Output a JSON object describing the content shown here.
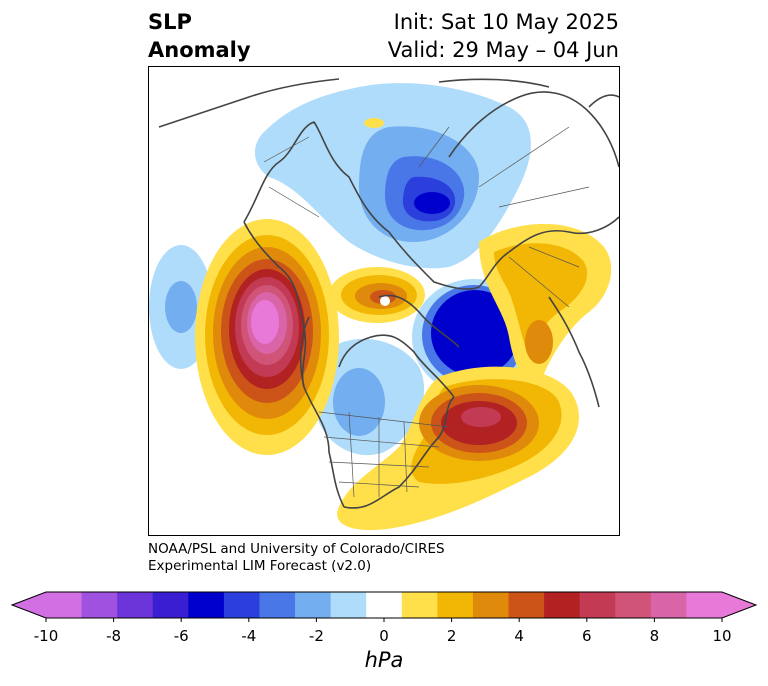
{
  "title": {
    "left_line1": "SLP",
    "left_line2": "Anomaly",
    "init": "Init: Sat 10 May 2025",
    "valid": "Valid: 29 May – 04 Jun"
  },
  "credit": {
    "line1": "NOAA/PSL and University of Colorado/CIRES",
    "line2": "Experimental LIM Forecast (v2.0)"
  },
  "colorbar": {
    "unit": "hPa",
    "ticks": [
      "-10",
      "-8",
      "-6",
      "-4",
      "-2",
      "0",
      "2",
      "4",
      "6",
      "8",
      "10"
    ],
    "levels": [
      -10,
      -9,
      -8,
      -7,
      -6,
      -5,
      -4,
      -3,
      -2,
      -1,
      1,
      2,
      3,
      4,
      5,
      6,
      7,
      8,
      9,
      10
    ],
    "colors": [
      "#d16fe3",
      "#9f52e0",
      "#6a34d8",
      "#3a1fd2",
      "#0000cc",
      "#2a3fdc",
      "#4a77e8",
      "#72aef0",
      "#aedcfa",
      "#ffffff",
      "#ffe04a",
      "#f2b705",
      "#e08a0b",
      "#cc5418",
      "#b22222",
      "#c33a55",
      "#cf5478",
      "#d964a8",
      "#e879d8"
    ],
    "extend": "both"
  },
  "map": {
    "projection": "north-polar-stereographic",
    "anomalies": [
      {
        "region": "North Pacific (Gulf of Alaska)",
        "sign": "positive",
        "peak_hPa": 10
      },
      {
        "region": "Northern Europe / Scandinavia",
        "sign": "positive",
        "peak_hPa": 10
      },
      {
        "region": "Western North Atlantic",
        "sign": "positive",
        "peak_hPa": 7
      },
      {
        "region": "Eastern Siberia / Laptev Sea",
        "sign": "negative",
        "peak_hPa": -6
      },
      {
        "region": "Greenland / Norwegian Sea dipole",
        "sign": "negative",
        "peak_hPa": -6
      },
      {
        "region": "Western Pacific",
        "sign": "negative",
        "peak_hPa": -3
      },
      {
        "region": "Hudson Bay / Canada",
        "sign": "negative",
        "peak_hPa": -3
      }
    ]
  }
}
